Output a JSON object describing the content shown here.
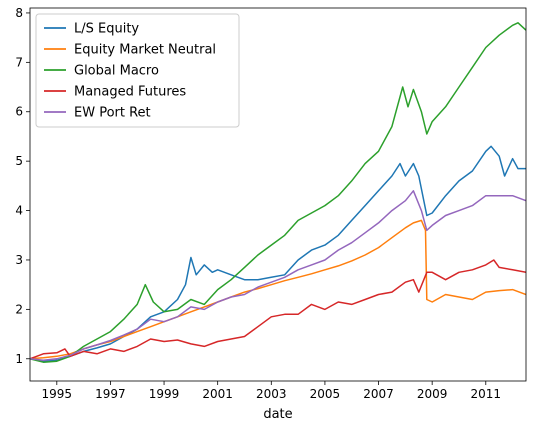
{
  "chart_data": {
    "type": "line",
    "title": "",
    "xlabel": "date",
    "ylabel": "",
    "xlim": [
      1994.0,
      2012.5
    ],
    "ylim": [
      0.55,
      8.1
    ],
    "x_ticks": [
      1995,
      1997,
      1999,
      2001,
      2003,
      2005,
      2007,
      2009,
      2011
    ],
    "y_ticks": [
      1,
      2,
      3,
      4,
      5,
      6,
      7,
      8
    ],
    "grid": false,
    "legend_position": "top-left",
    "series": [
      {
        "name": "L/S Equity",
        "color": "#1f77b4",
        "points": [
          [
            1994.0,
            1.0
          ],
          [
            1994.5,
            0.95
          ],
          [
            1995.0,
            0.97
          ],
          [
            1995.5,
            1.05
          ],
          [
            1996.0,
            1.15
          ],
          [
            1996.5,
            1.22
          ],
          [
            1997.0,
            1.3
          ],
          [
            1997.5,
            1.45
          ],
          [
            1998.0,
            1.6
          ],
          [
            1998.5,
            1.85
          ],
          [
            1999.0,
            1.95
          ],
          [
            1999.5,
            2.2
          ],
          [
            1999.8,
            2.5
          ],
          [
            2000.0,
            3.05
          ],
          [
            2000.2,
            2.7
          ],
          [
            2000.5,
            2.9
          ],
          [
            2000.8,
            2.75
          ],
          [
            2001.0,
            2.8
          ],
          [
            2001.5,
            2.7
          ],
          [
            2002.0,
            2.6
          ],
          [
            2002.5,
            2.6
          ],
          [
            2003.0,
            2.65
          ],
          [
            2003.5,
            2.7
          ],
          [
            2004.0,
            3.0
          ],
          [
            2004.5,
            3.2
          ],
          [
            2005.0,
            3.3
          ],
          [
            2005.5,
            3.5
          ],
          [
            2006.0,
            3.8
          ],
          [
            2006.5,
            4.1
          ],
          [
            2007.0,
            4.4
          ],
          [
            2007.5,
            4.7
          ],
          [
            2007.8,
            4.95
          ],
          [
            2008.0,
            4.7
          ],
          [
            2008.3,
            4.95
          ],
          [
            2008.5,
            4.7
          ],
          [
            2008.8,
            3.9
          ],
          [
            2009.0,
            3.95
          ],
          [
            2009.5,
            4.3
          ],
          [
            2010.0,
            4.6
          ],
          [
            2010.5,
            4.8
          ],
          [
            2011.0,
            5.2
          ],
          [
            2011.2,
            5.3
          ],
          [
            2011.5,
            5.1
          ],
          [
            2011.7,
            4.7
          ],
          [
            2012.0,
            5.05
          ],
          [
            2012.2,
            4.85
          ],
          [
            2012.5,
            4.85
          ]
        ]
      },
      {
        "name": "Equity Market Neutral",
        "color": "#ff7f0e",
        "points": [
          [
            1994.0,
            1.0
          ],
          [
            1994.5,
            1.02
          ],
          [
            1995.0,
            1.05
          ],
          [
            1995.5,
            1.1
          ],
          [
            1996.0,
            1.2
          ],
          [
            1996.5,
            1.28
          ],
          [
            1997.0,
            1.35
          ],
          [
            1997.5,
            1.45
          ],
          [
            1998.0,
            1.55
          ],
          [
            1998.5,
            1.65
          ],
          [
            1999.0,
            1.75
          ],
          [
            1999.5,
            1.85
          ],
          [
            2000.0,
            1.95
          ],
          [
            2000.5,
            2.05
          ],
          [
            2001.0,
            2.15
          ],
          [
            2001.5,
            2.25
          ],
          [
            2002.0,
            2.35
          ],
          [
            2002.5,
            2.42
          ],
          [
            2003.0,
            2.5
          ],
          [
            2003.5,
            2.58
          ],
          [
            2004.0,
            2.65
          ],
          [
            2004.5,
            2.72
          ],
          [
            2005.0,
            2.8
          ],
          [
            2005.5,
            2.88
          ],
          [
            2006.0,
            2.98
          ],
          [
            2006.5,
            3.1
          ],
          [
            2007.0,
            3.25
          ],
          [
            2007.5,
            3.45
          ],
          [
            2008.0,
            3.65
          ],
          [
            2008.3,
            3.75
          ],
          [
            2008.6,
            3.8
          ],
          [
            2008.75,
            3.6
          ],
          [
            2008.8,
            2.2
          ],
          [
            2009.0,
            2.15
          ],
          [
            2009.5,
            2.3
          ],
          [
            2010.0,
            2.25
          ],
          [
            2010.5,
            2.2
          ],
          [
            2011.0,
            2.35
          ],
          [
            2011.5,
            2.38
          ],
          [
            2012.0,
            2.4
          ],
          [
            2012.5,
            2.3
          ]
        ]
      },
      {
        "name": "Global Macro",
        "color": "#2ca02c",
        "points": [
          [
            1994.0,
            1.0
          ],
          [
            1994.5,
            0.93
          ],
          [
            1995.0,
            0.95
          ],
          [
            1995.5,
            1.05
          ],
          [
            1996.0,
            1.25
          ],
          [
            1996.5,
            1.4
          ],
          [
            1997.0,
            1.55
          ],
          [
            1997.5,
            1.8
          ],
          [
            1998.0,
            2.1
          ],
          [
            1998.3,
            2.5
          ],
          [
            1998.6,
            2.15
          ],
          [
            1999.0,
            1.95
          ],
          [
            1999.5,
            2.0
          ],
          [
            2000.0,
            2.2
          ],
          [
            2000.5,
            2.1
          ],
          [
            2001.0,
            2.4
          ],
          [
            2001.5,
            2.6
          ],
          [
            2002.0,
            2.85
          ],
          [
            2002.5,
            3.1
          ],
          [
            2003.0,
            3.3
          ],
          [
            2003.5,
            3.5
          ],
          [
            2004.0,
            3.8
          ],
          [
            2004.5,
            3.95
          ],
          [
            2005.0,
            4.1
          ],
          [
            2005.5,
            4.3
          ],
          [
            2006.0,
            4.6
          ],
          [
            2006.5,
            4.95
          ],
          [
            2007.0,
            5.2
          ],
          [
            2007.5,
            5.7
          ],
          [
            2007.9,
            6.5
          ],
          [
            2008.1,
            6.1
          ],
          [
            2008.3,
            6.45
          ],
          [
            2008.6,
            6.0
          ],
          [
            2008.8,
            5.55
          ],
          [
            2009.0,
            5.8
          ],
          [
            2009.5,
            6.1
          ],
          [
            2010.0,
            6.5
          ],
          [
            2010.5,
            6.9
          ],
          [
            2011.0,
            7.3
          ],
          [
            2011.5,
            7.55
          ],
          [
            2012.0,
            7.75
          ],
          [
            2012.2,
            7.8
          ],
          [
            2012.5,
            7.65
          ]
        ]
      },
      {
        "name": "Managed Futures",
        "color": "#d62728",
        "points": [
          [
            1994.0,
            1.0
          ],
          [
            1994.5,
            1.1
          ],
          [
            1995.0,
            1.12
          ],
          [
            1995.3,
            1.2
          ],
          [
            1995.5,
            1.05
          ],
          [
            1996.0,
            1.15
          ],
          [
            1996.5,
            1.1
          ],
          [
            1997.0,
            1.2
          ],
          [
            1997.5,
            1.15
          ],
          [
            1998.0,
            1.25
          ],
          [
            1998.5,
            1.4
          ],
          [
            1999.0,
            1.35
          ],
          [
            1999.5,
            1.38
          ],
          [
            2000.0,
            1.3
          ],
          [
            2000.5,
            1.25
          ],
          [
            2001.0,
            1.35
          ],
          [
            2001.5,
            1.4
          ],
          [
            2002.0,
            1.45
          ],
          [
            2002.5,
            1.65
          ],
          [
            2003.0,
            1.85
          ],
          [
            2003.5,
            1.9
          ],
          [
            2004.0,
            1.9
          ],
          [
            2004.5,
            2.1
          ],
          [
            2005.0,
            2.0
          ],
          [
            2005.5,
            2.15
          ],
          [
            2006.0,
            2.1
          ],
          [
            2006.5,
            2.2
          ],
          [
            2007.0,
            2.3
          ],
          [
            2007.5,
            2.35
          ],
          [
            2008.0,
            2.55
          ],
          [
            2008.3,
            2.6
          ],
          [
            2008.5,
            2.35
          ],
          [
            2008.8,
            2.75
          ],
          [
            2009.0,
            2.75
          ],
          [
            2009.5,
            2.6
          ],
          [
            2010.0,
            2.75
          ],
          [
            2010.5,
            2.8
          ],
          [
            2011.0,
            2.9
          ],
          [
            2011.3,
            3.0
          ],
          [
            2011.5,
            2.85
          ],
          [
            2012.0,
            2.8
          ],
          [
            2012.5,
            2.75
          ]
        ]
      },
      {
        "name": "EW Port Ret",
        "color": "#9467bd",
        "points": [
          [
            1994.0,
            1.0
          ],
          [
            1994.5,
            0.97
          ],
          [
            1995.0,
            1.0
          ],
          [
            1995.5,
            1.07
          ],
          [
            1996.0,
            1.2
          ],
          [
            1996.5,
            1.28
          ],
          [
            1997.0,
            1.37
          ],
          [
            1997.5,
            1.48
          ],
          [
            1998.0,
            1.6
          ],
          [
            1998.5,
            1.8
          ],
          [
            1999.0,
            1.75
          ],
          [
            1999.5,
            1.85
          ],
          [
            2000.0,
            2.05
          ],
          [
            2000.5,
            2.0
          ],
          [
            2001.0,
            2.15
          ],
          [
            2001.5,
            2.25
          ],
          [
            2002.0,
            2.3
          ],
          [
            2002.5,
            2.45
          ],
          [
            2003.0,
            2.55
          ],
          [
            2003.5,
            2.65
          ],
          [
            2004.0,
            2.8
          ],
          [
            2004.5,
            2.9
          ],
          [
            2005.0,
            3.0
          ],
          [
            2005.5,
            3.2
          ],
          [
            2006.0,
            3.35
          ],
          [
            2006.5,
            3.55
          ],
          [
            2007.0,
            3.75
          ],
          [
            2007.5,
            4.0
          ],
          [
            2008.0,
            4.2
          ],
          [
            2008.3,
            4.4
          ],
          [
            2008.6,
            4.0
          ],
          [
            2008.8,
            3.6
          ],
          [
            2009.0,
            3.7
          ],
          [
            2009.5,
            3.9
          ],
          [
            2010.0,
            4.0
          ],
          [
            2010.5,
            4.1
          ],
          [
            2011.0,
            4.3
          ],
          [
            2011.5,
            4.3
          ],
          [
            2012.0,
            4.3
          ],
          [
            2012.5,
            4.2
          ]
        ]
      }
    ]
  }
}
